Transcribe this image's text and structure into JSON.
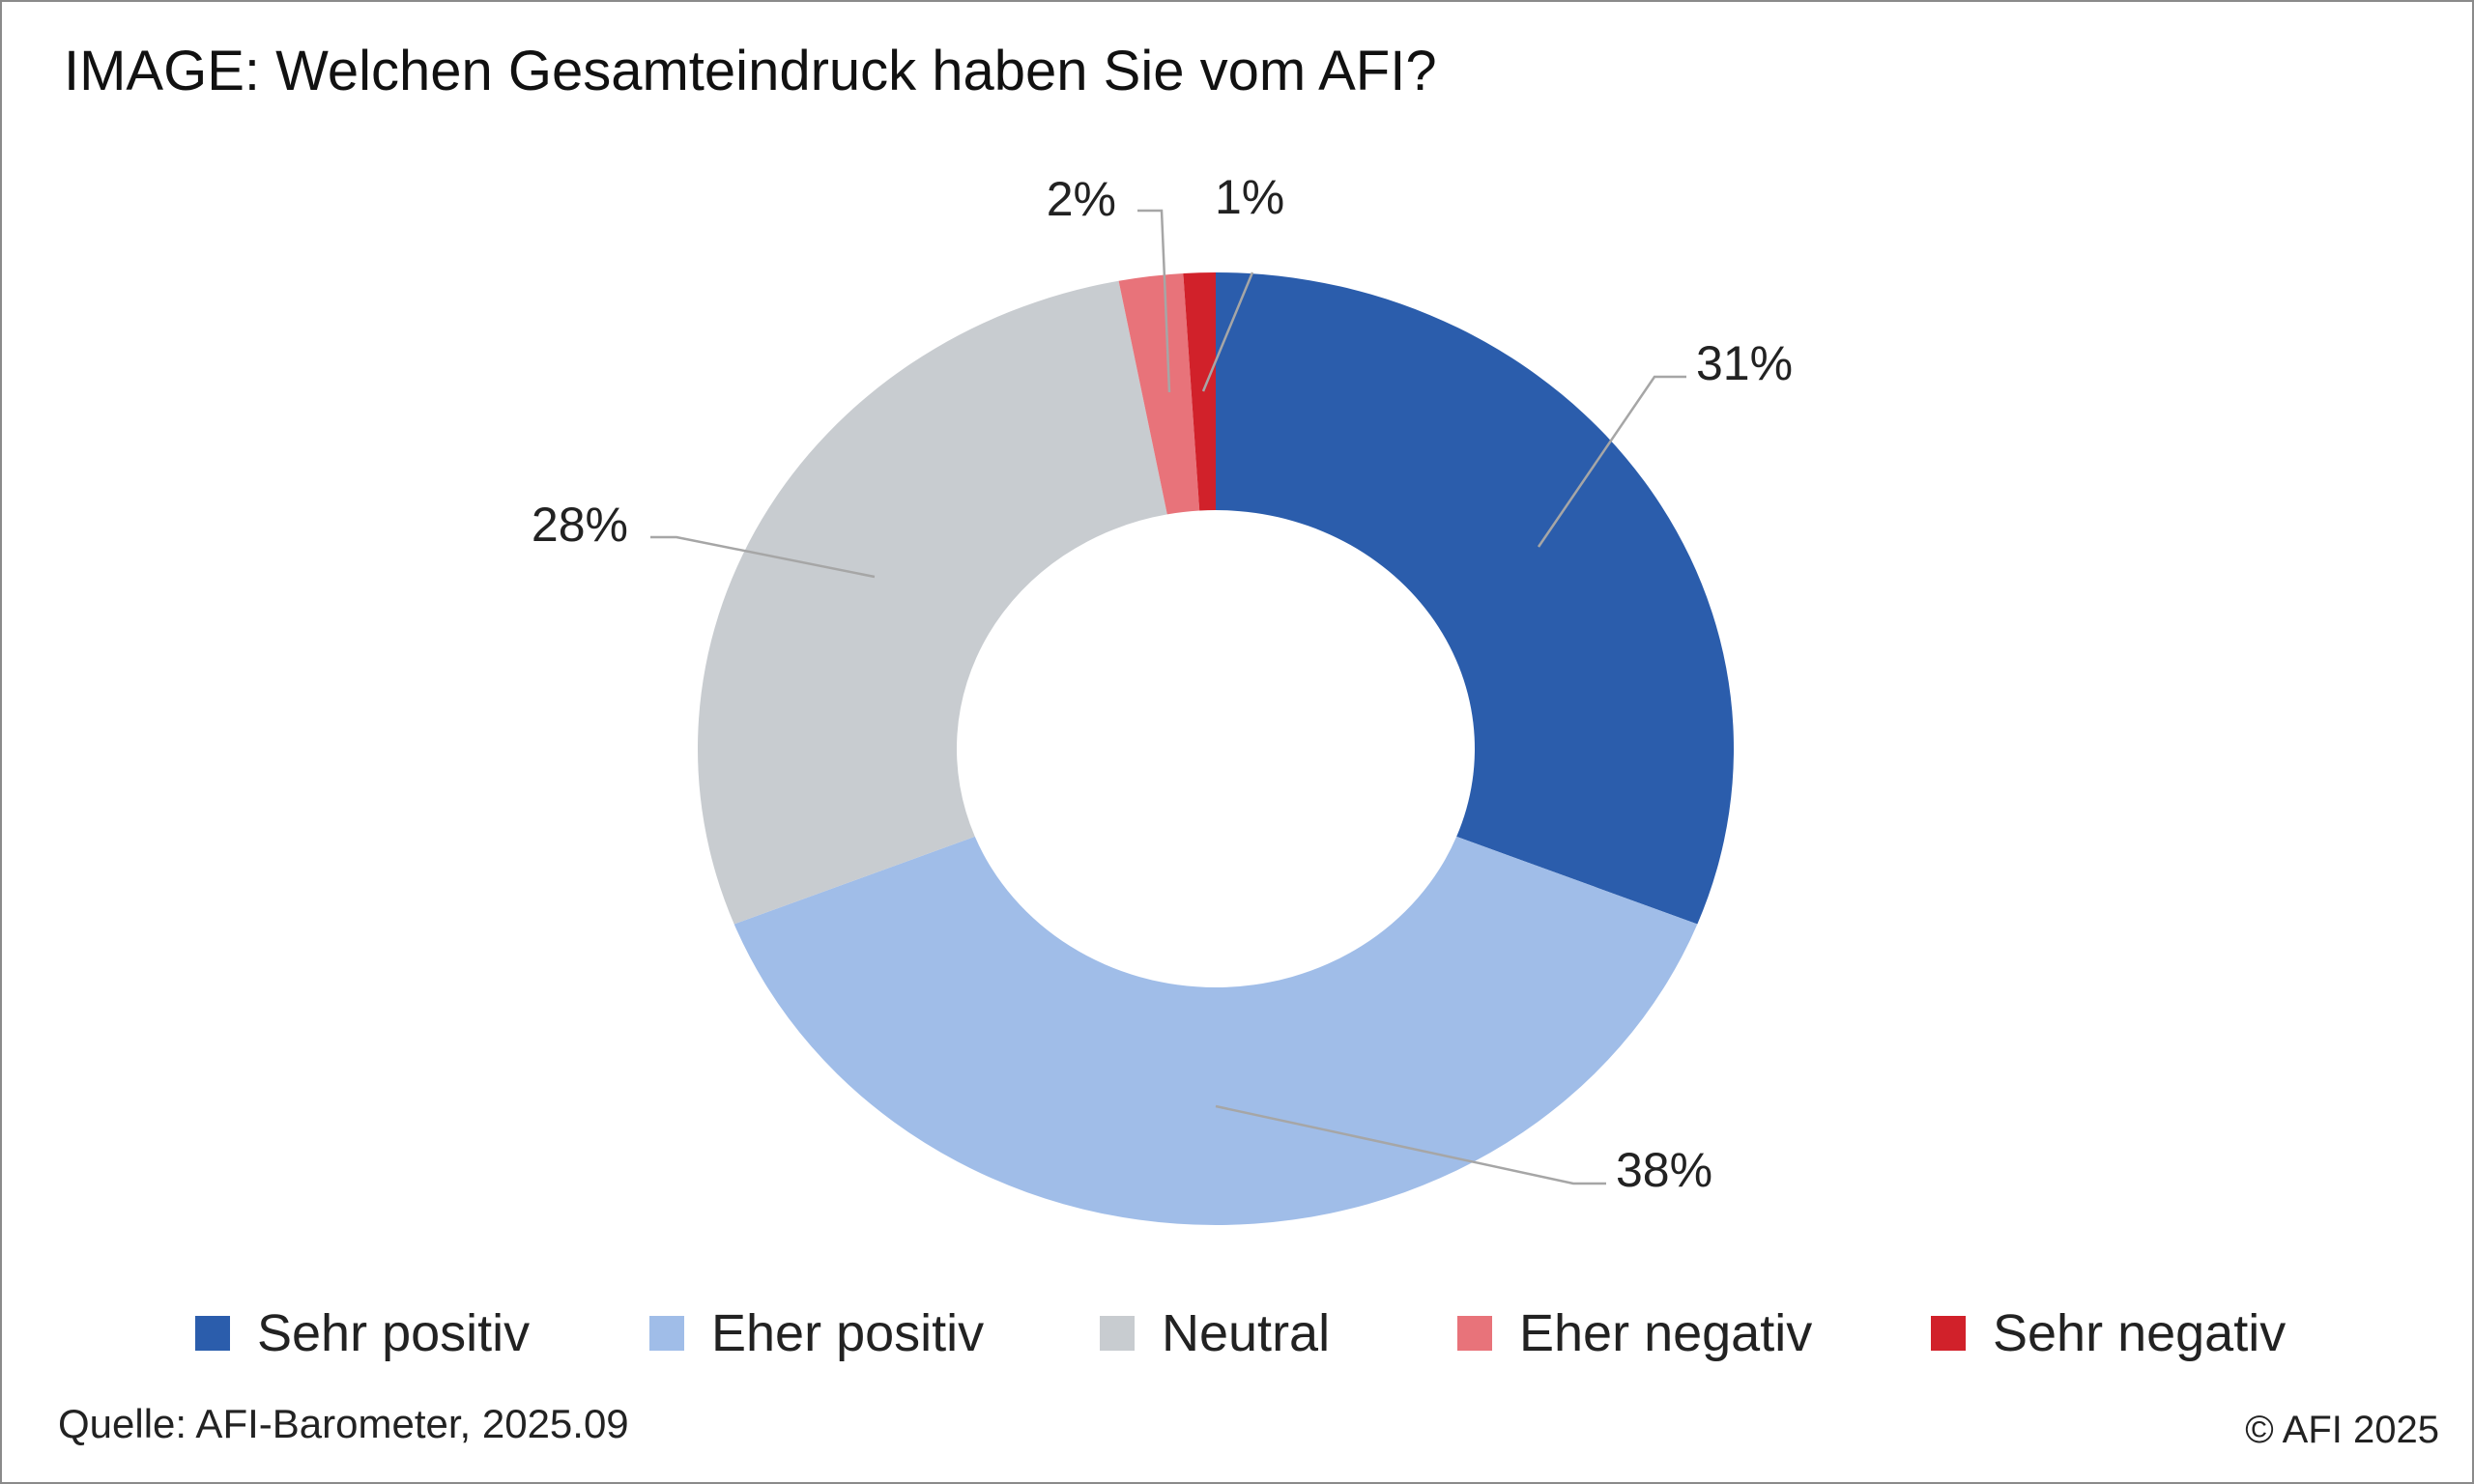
{
  "title": "IMAGE: Welchen Gesamteindruck haben Sie vom AFI?",
  "footer": {
    "source": "Quelle: AFI-Barometer, 2025.09",
    "copyright": "© AFI 2025"
  },
  "chart_data": {
    "type": "pie",
    "variant": "donut",
    "title": "IMAGE: Welchen Gesamteindruck haben Sie vom AFI?",
    "legend_position": "bottom",
    "categories": [
      "Sehr positiv",
      "Eher positiv",
      "Neutral",
      "Eher negativ",
      "Sehr negativ"
    ],
    "values": [
      31,
      38,
      28,
      2,
      1
    ],
    "data_labels": [
      "31%",
      "38%",
      "28%",
      "2%",
      "1%"
    ],
    "colors": [
      "#2b5dac",
      "#a0bde8",
      "#c8ccd0",
      "#e8737a",
      "#d1212a"
    ],
    "unit": "%"
  }
}
